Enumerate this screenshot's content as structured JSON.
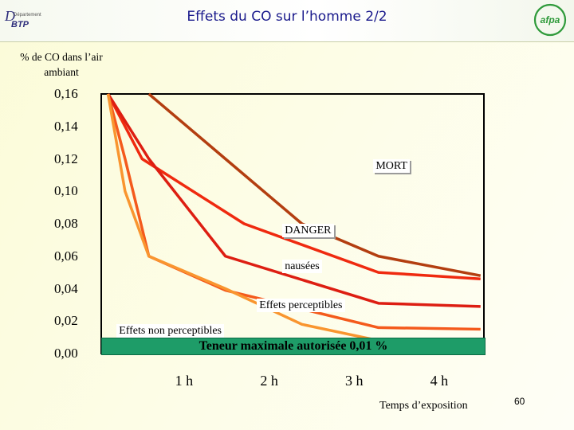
{
  "header": {
    "title": "Effets du CO sur l’homme 2/2",
    "logo_left": {
      "initial": "D",
      "small": "Département",
      "name": "BTP"
    },
    "logo_right": {
      "text": "afpa"
    }
  },
  "page_number": "60",
  "chart_data": {
    "type": "line",
    "title": "Effets du CO sur l’homme 2/2",
    "ylabel": "% de CO dans l’air ambiant",
    "xlabel": "Temps d’exposition",
    "y_ticks": [
      "0,16",
      "0,14",
      "0,12",
      "0,10",
      "0,08",
      "0,06",
      "0,04",
      "0,02",
      "0,00"
    ],
    "x_ticks": [
      "1 h",
      "2 h",
      "3 h",
      "4 h"
    ],
    "ylim": [
      0,
      0.16
    ],
    "xlim": [
      0,
      4.5
    ],
    "grid": false,
    "series": [
      {
        "color": "#b33e10",
        "x": [
          0.56,
          1.46,
          2.36,
          3.26,
          4.46
        ],
        "y": [
          0.16,
          0.12,
          0.08,
          0.06,
          0.048
        ]
      },
      {
        "color": "#ef2a0f",
        "x": [
          0.08,
          0.48,
          1.68,
          3.26,
          4.46
        ],
        "y": [
          0.16,
          0.12,
          0.08,
          0.05,
          0.046
        ]
      },
      {
        "color": "#dd1e12",
        "x": [
          0.08,
          0.56,
          1.46,
          3.26,
          4.46
        ],
        "y": [
          0.16,
          0.12,
          0.06,
          0.031,
          0.029
        ]
      },
      {
        "color": "#f45a1c",
        "x": [
          0.08,
          0.28,
          0.56,
          1.46,
          3.26,
          4.46
        ],
        "y": [
          0.16,
          0.12,
          0.06,
          0.039,
          0.016,
          0.015
        ]
      },
      {
        "color": "#f9952f",
        "x": [
          0.08,
          0.28,
          0.56,
          1.46,
          2.36,
          3.26,
          4.46
        ],
        "y": [
          0.16,
          0.1,
          0.06,
          0.04,
          0.018,
          0.008,
          0.008
        ]
      }
    ],
    "zones": [
      {
        "label": "MORT",
        "x": 3.2,
        "y": 0.116
      },
      {
        "label": "DANGER",
        "x": 2.13,
        "y": 0.076
      },
      {
        "label": "nausées",
        "x": 2.13,
        "y": 0.054
      },
      {
        "label": "Effets perceptibles",
        "x": 1.83,
        "y": 0.03
      },
      {
        "label": "Effets non perceptibles",
        "x": 0.18,
        "y": 0.014
      }
    ],
    "limit_label": "Teneur maximale autorisée 0,01 %",
    "limit_value": 0.01,
    "limit_color": "#1e9c68"
  }
}
